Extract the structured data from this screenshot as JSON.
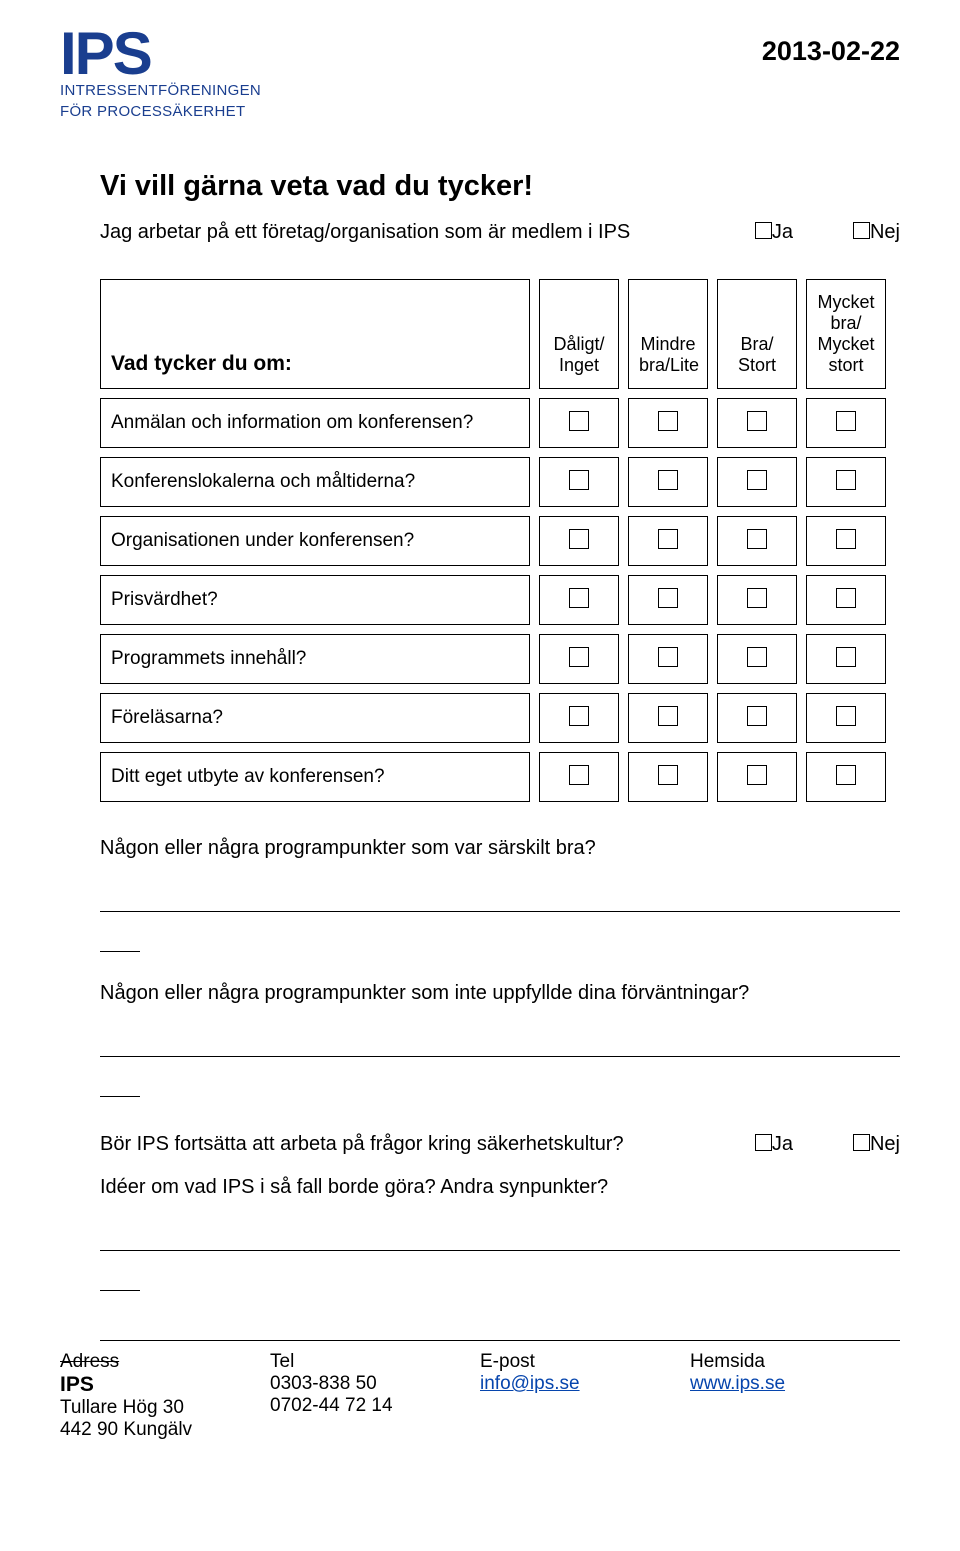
{
  "header": {
    "logo_text": "IPS",
    "org_line1": "INTRESSENTFÖRENINGEN",
    "org_line2": "FÖR PROCESSÄKERHET",
    "date": "2013-02-22",
    "logo_color": "#1a3e8f"
  },
  "title": "Vi vill gärna veta vad du tycker!",
  "intro": {
    "text": "Jag arbetar på ett företag/organisation som är medlem i IPS",
    "opt_yes": "Ja",
    "opt_no": "Nej"
  },
  "rating_header": {
    "question": "Vad tycker du om:",
    "col1": "Dåligt/\nInget",
    "col2": "Mindre\nbra/Lite",
    "col3": "Bra/\nStort",
    "col4": "Mycket\nbra/\nMycket\nstort"
  },
  "rating_rows": [
    "Anmälan och information om konferensen?",
    "Konferenslokalerna och måltiderna?",
    "Organisationen under konferensen?",
    "Prisvärdhet?",
    "Programmets innehåll?",
    "Föreläsarna?",
    "Ditt eget utbyte av konferensen?"
  ],
  "free_q1": "Någon eller några programpunkter som var särskilt bra?",
  "free_q2": "Någon eller några programpunkter som inte uppfyllde dina förväntningar?",
  "q3": {
    "text": "Bör IPS fortsätta att arbeta på frågor kring säkerhetskultur?",
    "opt_yes": "Ja",
    "opt_no": "Nej"
  },
  "q4": "Idéer om vad IPS i så fall borde göra? Andra synpunkter?",
  "footer": {
    "col1": {
      "head": "Adress",
      "l1": "IPS",
      "l2": "Tullare Hög 30",
      "l3": "442 90 Kungälv"
    },
    "col2": {
      "head": "Tel",
      "l1": "0303-838 50",
      "l2": "0702-44 72 14"
    },
    "col3": {
      "head": "E-post",
      "l1": "info@ips.se"
    },
    "col4": {
      "head": "Hemsida",
      "l1": "www.ips.se"
    }
  }
}
